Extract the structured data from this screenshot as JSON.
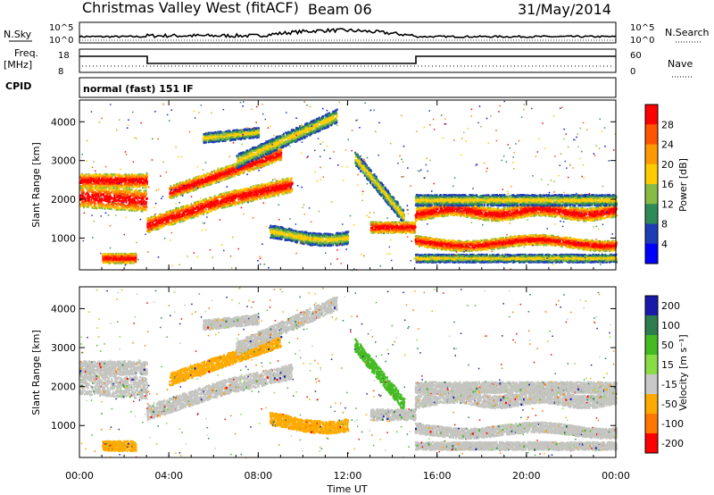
{
  "header": {
    "radar_title": "Christmas Valley West (fitACF)",
    "beam": "Beam 06",
    "date": "31/May/2014"
  },
  "strip": {
    "nsky_label": "N.Sky",
    "nsky_ticks": [
      "10^5",
      "10^0"
    ],
    "nsearch_label": "N.Search",
    "nsearch_ticks": [
      "10^5",
      "10^0"
    ],
    "freq_label": "Freq.",
    "freq_unit": "[MHz]",
    "freq_ticks": [
      "18",
      "8"
    ],
    "nave_label": "Nave",
    "nave_ticks": [
      "60",
      "0"
    ],
    "cpid_label": "CPID",
    "cpid_text": "normal (fast) 151 IF"
  },
  "chart_data": [
    {
      "type": "heatmap",
      "title": "",
      "xlabel": "",
      "ylabel": "Slant Range [km]",
      "colorbar_label": "Power [dB]",
      "xlim": [
        0,
        24
      ],
      "ylim": [
        180,
        4560
      ],
      "x_ticks": [
        "00:00",
        "04:00",
        "08:00",
        "12:00",
        "16:00",
        "20:00",
        "00:00"
      ],
      "y_ticks": [
        "1000",
        "2000",
        "3000",
        "4000"
      ],
      "colorbar_ticks": [
        "28",
        "24",
        "20",
        "16",
        "12",
        "8",
        "4"
      ],
      "colors": [
        "#ff0000",
        "#ff5500",
        "#ff9900",
        "#ffcc00",
        "#88bb44",
        "#2e8b57",
        "#1e3cb4",
        "#0000ff"
      ]
    },
    {
      "type": "heatmap",
      "title": "",
      "xlabel": "Time UT",
      "ylabel": "Slant Range [km]",
      "colorbar_label": "Velocity [m s⁻¹]",
      "xlim": [
        0,
        24
      ],
      "ylim": [
        180,
        4560
      ],
      "x_ticks": [
        "00:00",
        "04:00",
        "08:00",
        "12:00",
        "16:00",
        "20:00",
        "00:00"
      ],
      "y_ticks": [
        "1000",
        "2000",
        "3000",
        "4000"
      ],
      "colorbar_ticks": [
        "200",
        "100",
        "50",
        "15",
        "-15",
        "-50",
        "-100",
        "-200"
      ],
      "colors": [
        "#1a1aaa",
        "#2e7d4f",
        "#44bb22",
        "#88dd44",
        "#c8c8c8",
        "#ffaa00",
        "#ff7700",
        "#ff0000"
      ]
    }
  ],
  "colors": {
    "gray_scatter": "#c4c4c0",
    "axis": "#000000"
  }
}
